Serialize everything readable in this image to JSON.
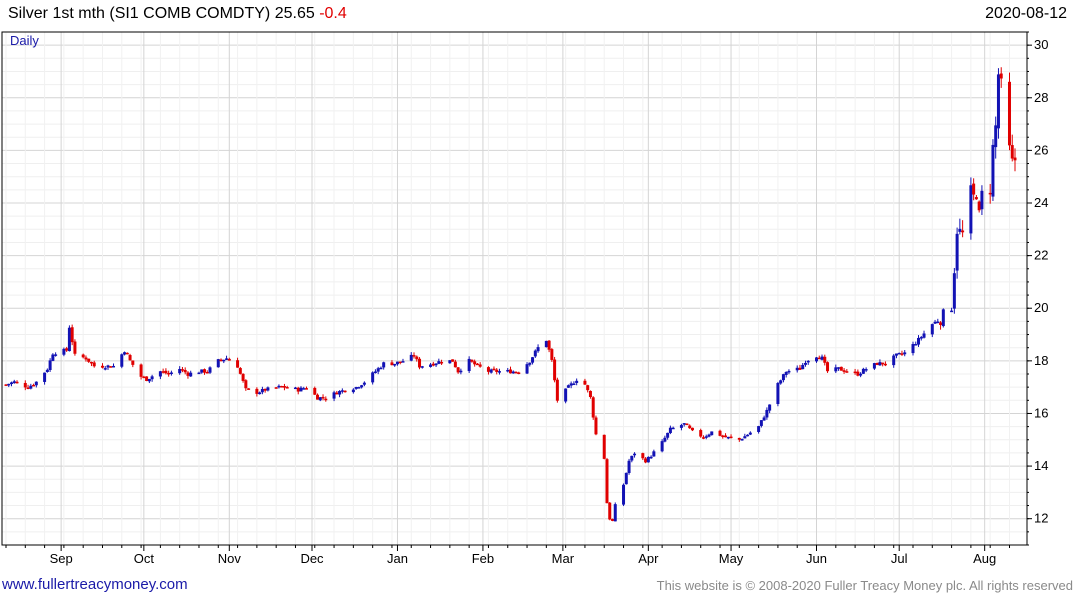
{
  "header": {
    "title": "Silver 1st mth (SI1 COMB COMDTY)",
    "last": "25.65",
    "change": "-0.4",
    "date": "2020-08-12"
  },
  "footer": {
    "site": "www.fullertreacymoney.com",
    "copyright": "This website is © 2008-2020 Fuller Treacy Money plc. All rights reserved"
  },
  "colors": {
    "up": "#1212b4",
    "down": "#e00000",
    "grid": "#e6e6e6",
    "frame": "#000000"
  },
  "chart_data": {
    "type": "candlestick",
    "period_label": "Daily",
    "x_start": "2019-08-12",
    "x_end": "2020-08-12",
    "ylim": [
      11,
      30.5
    ],
    "y_ticks": [
      12,
      14,
      16,
      18,
      20,
      22,
      24,
      26,
      28,
      30
    ],
    "month_ticks": [
      {
        "label": "Sep",
        "date": "2019-09-01"
      },
      {
        "label": "Oct",
        "date": "2019-10-01"
      },
      {
        "label": "Nov",
        "date": "2019-11-01"
      },
      {
        "label": "Dec",
        "date": "2019-12-01"
      },
      {
        "label": "Jan",
        "date": "2020-01-01"
      },
      {
        "label": "Feb",
        "date": "2020-02-01"
      },
      {
        "label": "Mar",
        "date": "2020-03-01"
      },
      {
        "label": "Apr",
        "date": "2020-04-01"
      },
      {
        "label": "May",
        "date": "2020-05-01"
      },
      {
        "label": "Jun",
        "date": "2020-06-01"
      },
      {
        "label": "Jul",
        "date": "2020-07-01"
      },
      {
        "label": "Aug",
        "date": "2020-08-01"
      }
    ],
    "close_path": [
      [
        "2019-08-12",
        17.1
      ],
      [
        "2019-08-15",
        17.2
      ],
      [
        "2019-08-20",
        17.0
      ],
      [
        "2019-08-23",
        17.2
      ],
      [
        "2019-08-27",
        17.7
      ],
      [
        "2019-08-29",
        18.3
      ],
      [
        "2019-09-03",
        18.4
      ],
      [
        "2019-09-04",
        19.3
      ],
      [
        "2019-09-06",
        18.2
      ],
      [
        "2019-09-10",
        18.1
      ],
      [
        "2019-09-13",
        17.8
      ],
      [
        "2019-09-17",
        17.8
      ],
      [
        "2019-09-20",
        17.8
      ],
      [
        "2019-09-24",
        18.4
      ],
      [
        "2019-09-26",
        18.0
      ],
      [
        "2019-09-30",
        17.4
      ],
      [
        "2019-10-02",
        17.3
      ],
      [
        "2019-10-07",
        17.6
      ],
      [
        "2019-10-10",
        17.5
      ],
      [
        "2019-10-14",
        17.7
      ],
      [
        "2019-10-17",
        17.5
      ],
      [
        "2019-10-21",
        17.6
      ],
      [
        "2019-10-24",
        17.6
      ],
      [
        "2019-10-28",
        18.0
      ],
      [
        "2019-10-31",
        18.1
      ],
      [
        "2019-11-04",
        17.8
      ],
      [
        "2019-11-07",
        16.9
      ],
      [
        "2019-11-11",
        16.8
      ],
      [
        "2019-11-14",
        16.9
      ],
      [
        "2019-11-19",
        17.0
      ],
      [
        "2019-11-22",
        17.0
      ],
      [
        "2019-11-26",
        16.9
      ],
      [
        "2019-11-29",
        17.0
      ],
      [
        "2019-12-03",
        16.6
      ],
      [
        "2019-12-06",
        16.6
      ],
      [
        "2019-12-10",
        16.8
      ],
      [
        "2019-12-13",
        16.9
      ],
      [
        "2019-12-17",
        17.0
      ],
      [
        "2019-12-20",
        17.2
      ],
      [
        "2019-12-24",
        17.6
      ],
      [
        "2019-12-27",
        17.9
      ],
      [
        "2019-12-31",
        17.9
      ],
      [
        "2020-01-03",
        18.0
      ],
      [
        "2020-01-07",
        18.2
      ],
      [
        "2020-01-09",
        17.8
      ],
      [
        "2020-01-14",
        17.9
      ],
      [
        "2020-01-17",
        18.0
      ],
      [
        "2020-01-21",
        18.0
      ],
      [
        "2020-01-23",
        17.6
      ],
      [
        "2020-01-27",
        18.0
      ],
      [
        "2020-01-30",
        17.8
      ],
      [
        "2020-02-03",
        17.6
      ],
      [
        "2020-02-06",
        17.6
      ],
      [
        "2020-02-11",
        17.6
      ],
      [
        "2020-02-14",
        17.6
      ],
      [
        "2020-02-18",
        18.0
      ],
      [
        "2020-02-21",
        18.5
      ],
      [
        "2020-02-24",
        18.8
      ],
      [
        "2020-02-26",
        18.0
      ],
      [
        "2020-02-28",
        16.5
      ],
      [
        "2020-03-03",
        17.0
      ],
      [
        "2020-03-06",
        17.3
      ],
      [
        "2020-03-09",
        17.1
      ],
      [
        "2020-03-11",
        16.6
      ],
      [
        "2020-03-13",
        15.2
      ],
      [
        "2020-03-16",
        14.3
      ],
      [
        "2020-03-17",
        12.6
      ],
      [
        "2020-03-18",
        12.0
      ],
      [
        "2020-03-19",
        11.9
      ],
      [
        "2020-03-20",
        12.5
      ],
      [
        "2020-03-23",
        13.3
      ],
      [
        "2020-03-25",
        14.2
      ],
      [
        "2020-03-27",
        14.5
      ],
      [
        "2020-03-31",
        14.2
      ],
      [
        "2020-04-02",
        14.4
      ],
      [
        "2020-04-06",
        14.9
      ],
      [
        "2020-04-09",
        15.4
      ],
      [
        "2020-04-14",
        15.6
      ],
      [
        "2020-04-17",
        15.3
      ],
      [
        "2020-04-21",
        15.1
      ],
      [
        "2020-04-24",
        15.3
      ],
      [
        "2020-04-29",
        15.1
      ],
      [
        "2020-05-04",
        15.0
      ],
      [
        "2020-05-07",
        15.2
      ],
      [
        "2020-05-11",
        15.5
      ],
      [
        "2020-05-14",
        16.1
      ],
      [
        "2020-05-18",
        17.1
      ],
      [
        "2020-05-21",
        17.6
      ],
      [
        "2020-05-26",
        17.7
      ],
      [
        "2020-05-28",
        18.0
      ],
      [
        "2020-06-01",
        18.2
      ],
      [
        "2020-06-03",
        18.1
      ],
      [
        "2020-06-05",
        17.6
      ],
      [
        "2020-06-09",
        17.7
      ],
      [
        "2020-06-12",
        17.6
      ],
      [
        "2020-06-16",
        17.5
      ],
      [
        "2020-06-19",
        17.7
      ],
      [
        "2020-06-23",
        17.9
      ],
      [
        "2020-06-26",
        17.9
      ],
      [
        "2020-06-30",
        18.2
      ],
      [
        "2020-07-03",
        18.3
      ],
      [
        "2020-07-08",
        18.8
      ],
      [
        "2020-07-13",
        19.4
      ],
      [
        "2020-07-16",
        19.6
      ],
      [
        "2020-07-20",
        20.1
      ],
      [
        "2020-07-21",
        21.5
      ],
      [
        "2020-07-22",
        23.0
      ],
      [
        "2020-07-24",
        22.8
      ],
      [
        "2020-07-27",
        24.4
      ],
      [
        "2020-07-28",
        24.2
      ],
      [
        "2020-07-29",
        24.4
      ],
      [
        "2020-07-30",
        23.5
      ],
      [
        "2020-07-31",
        24.3
      ],
      [
        "2020-08-03",
        24.6
      ],
      [
        "2020-08-04",
        26.1
      ],
      [
        "2020-08-05",
        26.9
      ],
      [
        "2020-08-06",
        28.9
      ],
      [
        "2020-08-07",
        28.4
      ],
      [
        "2020-08-10",
        26.0
      ],
      [
        "2020-08-11",
        25.5
      ],
      [
        "2020-08-12",
        25.65
      ]
    ]
  }
}
